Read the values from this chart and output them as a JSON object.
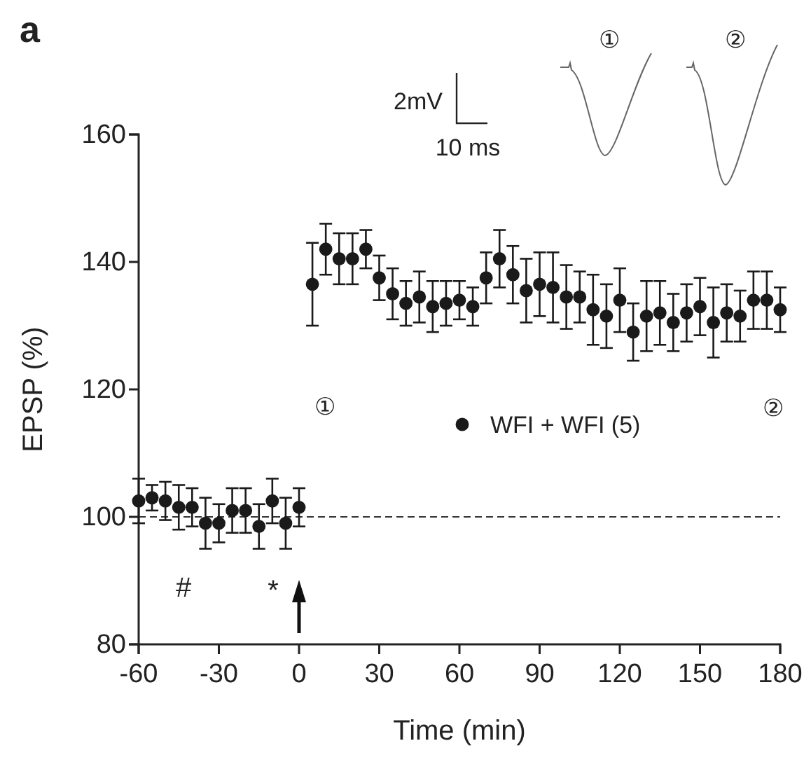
{
  "chart_data": {
    "type": "scatter",
    "title": "a",
    "xlabel": "Time (min)",
    "ylabel": "EPSP (%)",
    "xlim": [
      -60,
      180
    ],
    "xticks": [
      -60,
      -30,
      0,
      30,
      60,
      90,
      120,
      150,
      180
    ],
    "ylim": [
      80,
      160
    ],
    "yticks": [
      80,
      100,
      120,
      140,
      160
    ],
    "grid": false,
    "legend": "right",
    "marker": "circle",
    "series": [
      {
        "name": "WFI + WFI (5)",
        "color": "#1a1a1a",
        "x": [
          -60,
          -55,
          -50,
          -45,
          -40,
          -35,
          -30,
          -25,
          -20,
          -15,
          -10,
          -5,
          0,
          5,
          10,
          15,
          20,
          25,
          30,
          35,
          40,
          45,
          50,
          55,
          60,
          65,
          70,
          75,
          80,
          85,
          90,
          95,
          100,
          105,
          110,
          115,
          120,
          125,
          130,
          135,
          140,
          145,
          150,
          155,
          160,
          165,
          170,
          175,
          180
        ],
        "values": [
          102.5,
          103,
          102.5,
          101.5,
          101.5,
          99,
          99,
          101,
          101,
          98.5,
          102.5,
          99,
          101.5,
          136.5,
          142,
          140.5,
          140.5,
          142,
          137.5,
          135,
          133.5,
          134.5,
          133,
          133.5,
          134,
          133,
          137.5,
          140.5,
          138,
          135.5,
          136.5,
          136,
          134.5,
          134.5,
          132.5,
          131.5,
          134,
          129,
          131.5,
          132,
          130.5,
          132,
          133,
          130.5,
          132,
          131.5,
          134,
          134,
          132.5
        ],
        "errors": [
          3.5,
          2,
          3,
          3.5,
          3,
          4,
          3,
          3.5,
          3.5,
          3.5,
          3.5,
          4,
          3,
          6.5,
          4,
          4,
          4,
          3,
          3.5,
          4,
          3.5,
          4,
          4,
          3.5,
          3,
          3,
          4,
          4.5,
          4.5,
          5,
          5,
          5.5,
          5,
          4,
          5.5,
          5,
          5,
          4.5,
          5.5,
          5,
          4.5,
          4.5,
          4.5,
          5.5,
          4.5,
          4,
          4.5,
          4.5,
          3.5
        ]
      }
    ],
    "ref_lines": [
      {
        "axis": "y",
        "value": 100,
        "line_style": "dashed",
        "color": "#333333"
      }
    ],
    "annotations": [
      "①",
      "②",
      "#",
      "*",
      "2mV",
      "10 ms",
      "①",
      "②"
    ]
  }
}
